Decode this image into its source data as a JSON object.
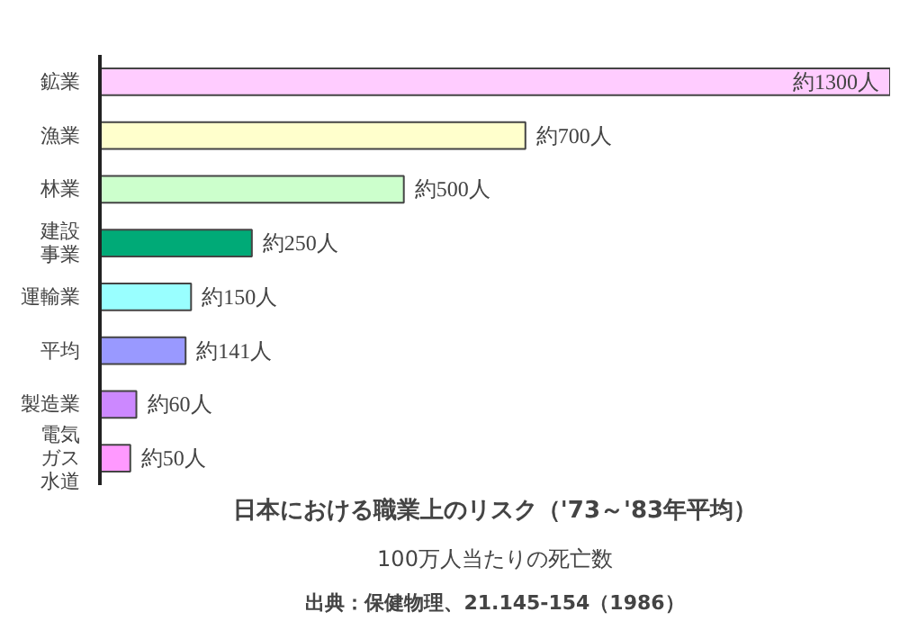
{
  "chart_data": {
    "type": "bar",
    "orientation": "horizontal",
    "title": "日本における職業上のリスク（'73～'83年平均）",
    "subtitle": "100万人当たりの死亡数",
    "annotations": [
      "出典：保健物理、21.145-154（1986）"
    ],
    "categories": [
      "鉱業",
      "漁業",
      "林業",
      "建設事業",
      "運輸業",
      "平均",
      "製造業",
      "電気ガス水道"
    ],
    "values": [
      1300,
      700,
      500,
      250,
      150,
      141,
      60,
      50
    ],
    "colors": [
      "#ffccff",
      "#ffffcc",
      "#ccffcc",
      "#00aa77",
      "#99ffff",
      "#9999ff",
      "#cc88ff",
      "#ff99ff"
    ],
    "data_labels": true,
    "value_labels": [
      "約1300人",
      "約700人",
      "約500人",
      "約250人",
      "約150人",
      "約141人",
      "約60人",
      "約50人"
    ],
    "grid": false
  }
}
